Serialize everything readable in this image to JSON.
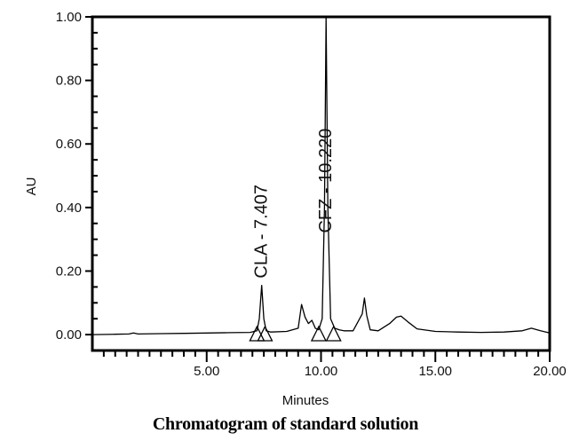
{
  "chart_data": {
    "type": "line",
    "title": "Chromatogram of standard solution",
    "xlabel": "Minutes",
    "ylabel": "AU",
    "xlim": [
      0,
      20
    ],
    "ylim": [
      -0.05,
      1.0
    ],
    "x_ticks": [
      5,
      10,
      15,
      20
    ],
    "x_tick_labels": [
      "5.00",
      "10.00",
      "15.00",
      "20.00"
    ],
    "x_minor_step": 0.5,
    "y_ticks": [
      0,
      0.2,
      0.4,
      0.6,
      0.8,
      1.0
    ],
    "y_tick_labels": [
      "0.00",
      "0.20",
      "0.40",
      "0.60",
      "0.80",
      "1.00"
    ],
    "y_minor_step": 0.05,
    "grid": false,
    "series": [
      {
        "x": [
          0,
          1.0,
          1.6,
          1.8,
          2.0,
          3.0,
          4.0,
          5.0,
          6.0,
          6.9,
          7.2,
          7.3,
          7.407,
          7.5,
          7.6,
          7.8,
          8.5,
          9.0,
          9.15,
          9.3,
          9.45,
          9.6,
          9.75,
          9.9,
          10.05,
          10.15,
          10.22,
          10.3,
          10.42,
          10.6,
          10.8,
          11.0,
          11.4,
          11.8,
          11.9,
          12.0,
          12.15,
          12.5,
          13.0,
          13.3,
          13.5,
          13.8,
          14.2,
          15.0,
          16.0,
          17.0,
          18.0,
          18.8,
          19.2,
          19.6,
          20.0
        ],
        "y": [
          0.0,
          0.001,
          0.002,
          0.005,
          0.002,
          0.003,
          0.004,
          0.005,
          0.006,
          0.007,
          0.012,
          0.05,
          0.155,
          0.05,
          0.012,
          0.008,
          0.01,
          0.02,
          0.095,
          0.055,
          0.035,
          0.045,
          0.02,
          0.015,
          0.05,
          0.4,
          1.0,
          0.4,
          0.05,
          0.02,
          0.015,
          0.012,
          0.012,
          0.065,
          0.115,
          0.06,
          0.015,
          0.012,
          0.035,
          0.055,
          0.058,
          0.04,
          0.018,
          0.01,
          0.008,
          0.007,
          0.008,
          0.012,
          0.02,
          0.012,
          0.005
        ]
      }
    ],
    "peaks": [
      {
        "label": "CLA - 7.407",
        "x": 7.407,
        "y": 0.155
      },
      {
        "label": "CFZ - 10.220",
        "x": 10.22,
        "y": 1.0
      }
    ],
    "baseline_markers": [
      7.2,
      7.55,
      9.9,
      10.55
    ]
  }
}
